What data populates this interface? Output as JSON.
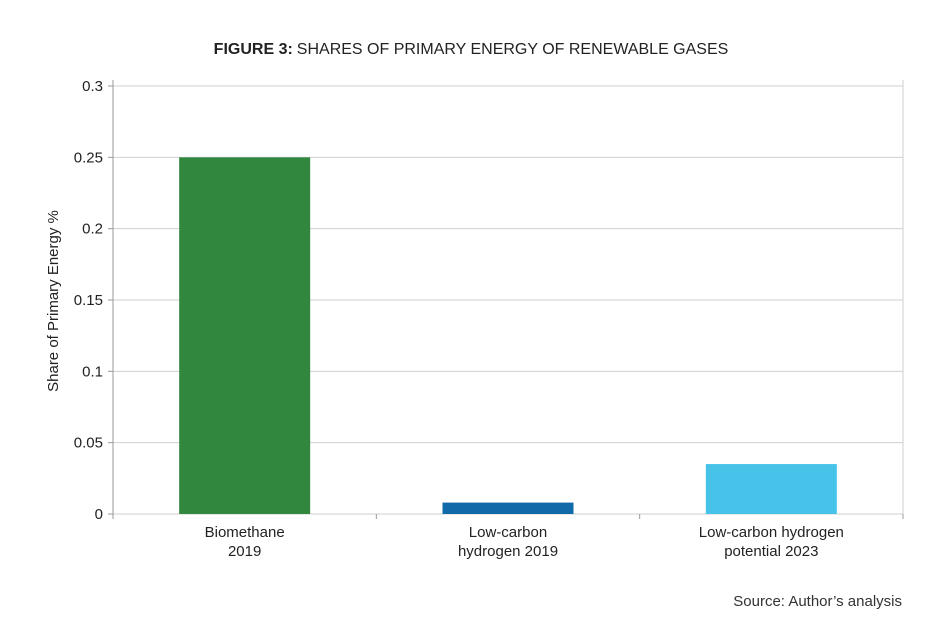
{
  "chart_data": {
    "type": "bar",
    "title_prefix": "FIGURE 3:",
    "title": "SHARES OF PRIMARY ENERGY OF RENEWABLE GASES",
    "xlabel": "",
    "ylabel": "Share of Primary Energy %",
    "ylim": [
      0,
      0.3
    ],
    "yticks": [
      "0",
      "0.05",
      "0.1",
      "0.15",
      "0.2",
      "0.25",
      "0.3"
    ],
    "grid": true,
    "categories": [
      [
        "Biomethane",
        "2019"
      ],
      [
        "Low-carbon",
        "hydrogen 2019"
      ],
      [
        "Low-carbon hydrogen",
        "potential 2023"
      ]
    ],
    "values": [
      0.25,
      0.008,
      0.035
    ],
    "colors": [
      "#32873f",
      "#1069a8",
      "#47c3ea"
    ],
    "source": "Source: Author’s analysis"
  }
}
